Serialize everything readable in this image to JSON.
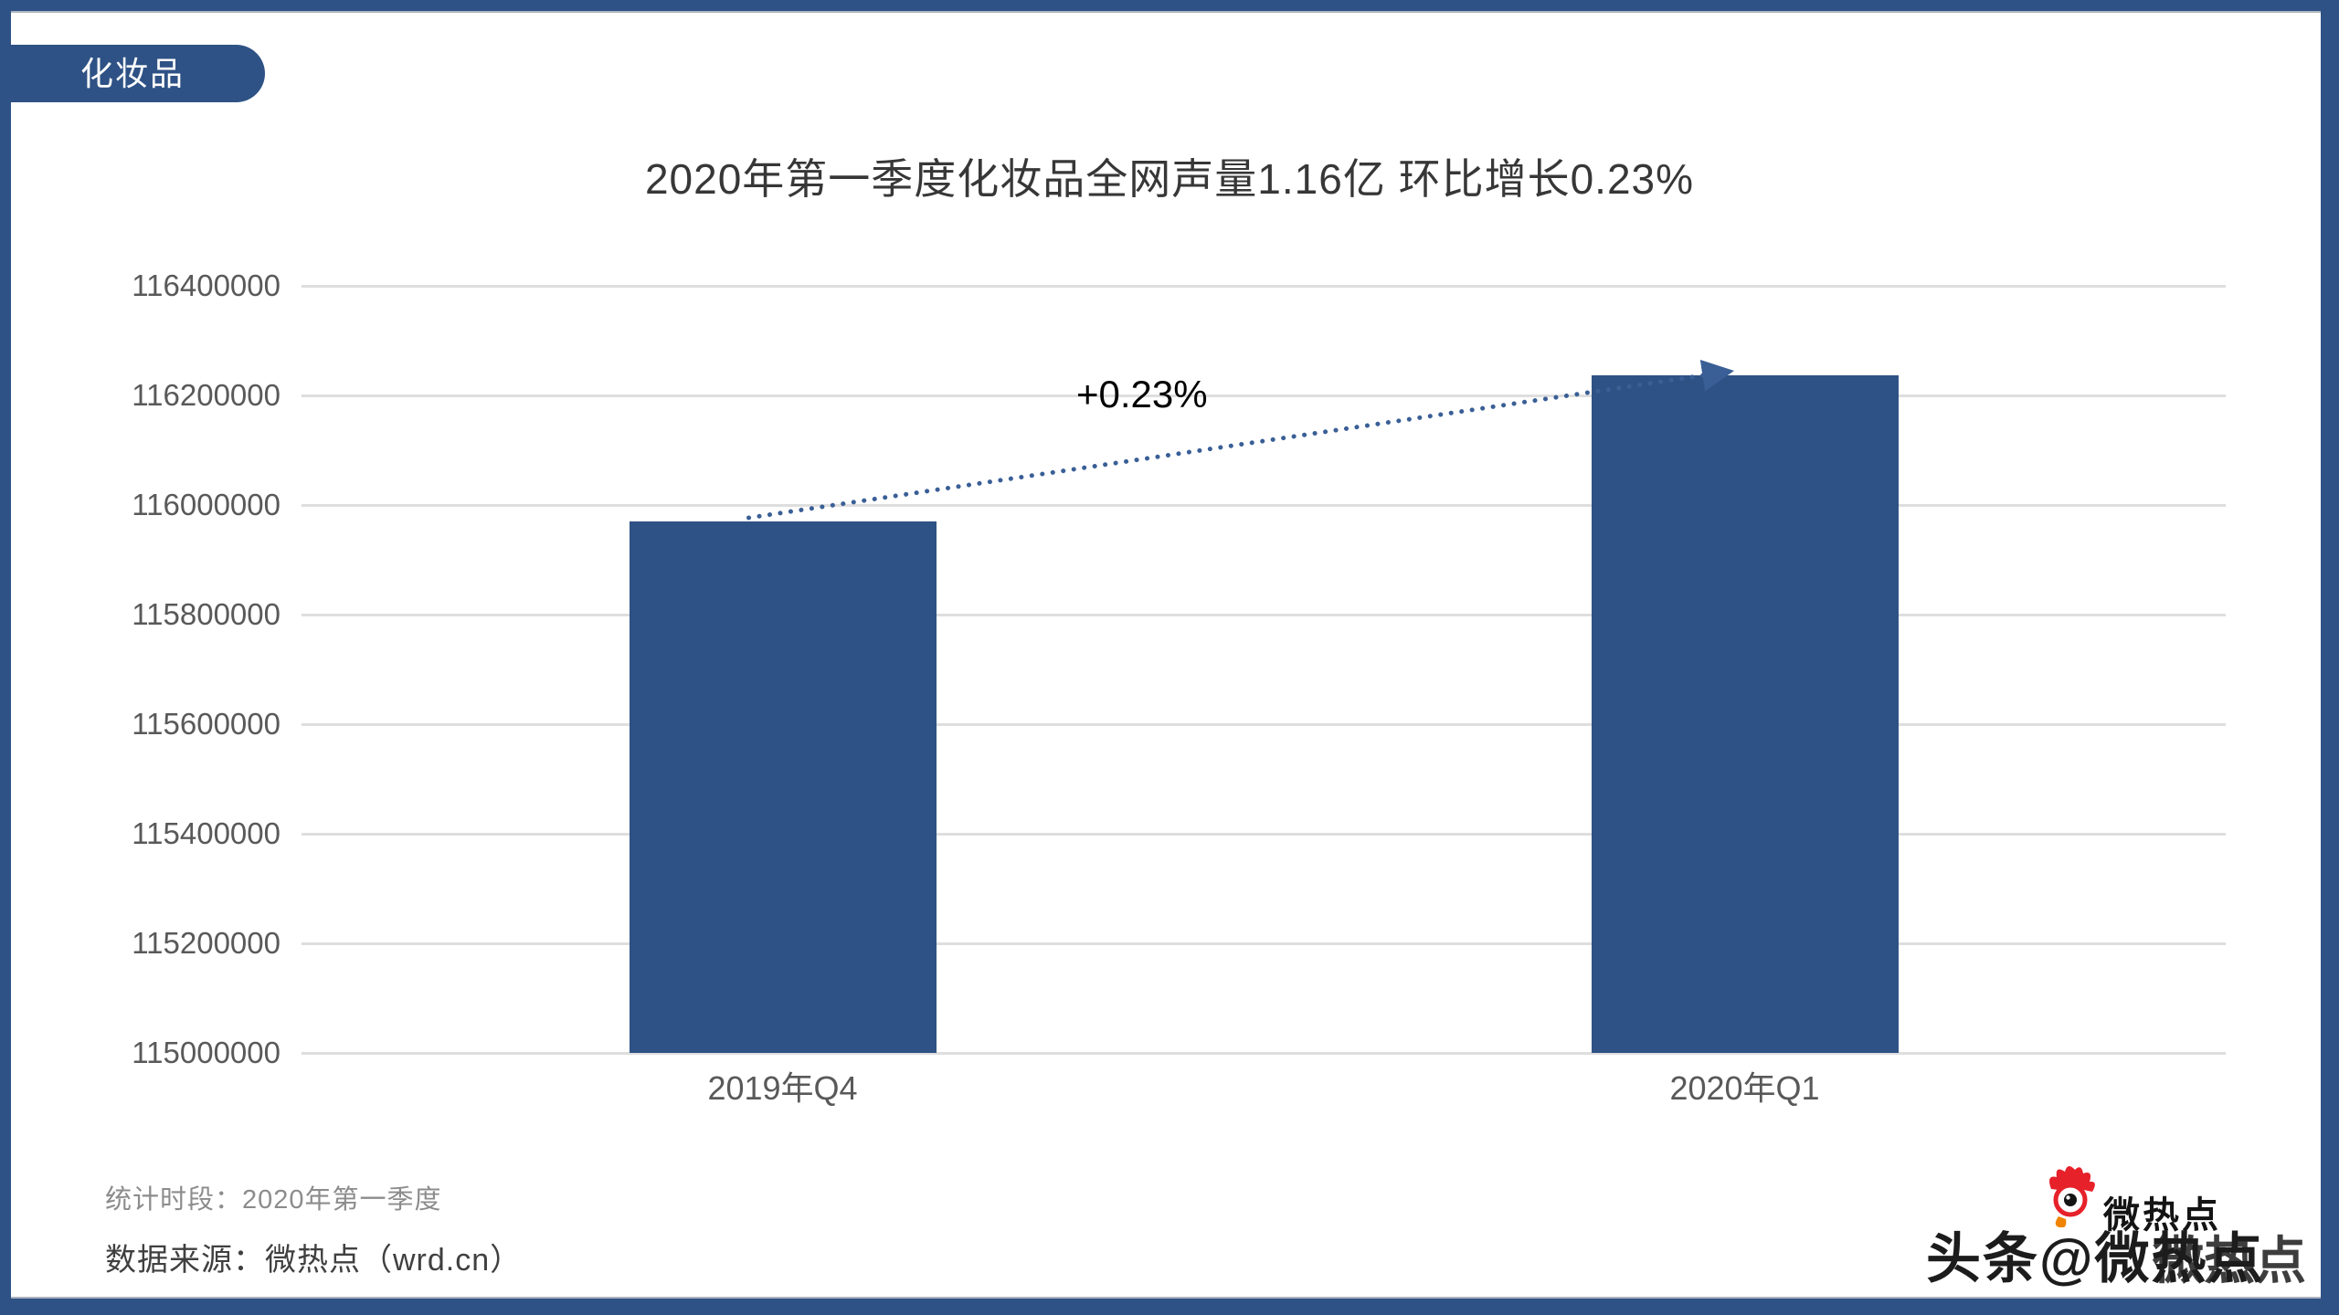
{
  "page": {
    "badge": "化妆品",
    "title": "2020年第一季度化妆品全网声量1.16亿 环比增长0.23%",
    "footer": {
      "period_label": "统计时段：2020年第一季度",
      "source_label": "数据来源：微热点（wrd.cn）"
    },
    "watermark": {
      "logo_text": "微热点",
      "overlay_text": "头条@微热点"
    },
    "colors": {
      "brand_blue": "#2e5285",
      "grid_gray": "#dedede",
      "axis_text_gray": "#595959",
      "title_text": "#373737",
      "annotation_black": "#000000",
      "dotted_line_blue": "#3a5f96",
      "footer_gray": "#8c8c8c",
      "footer_dark": "#404040",
      "logo_red": "#e6212a",
      "logo_drop_orange": "#f08300"
    }
  },
  "chart_data": {
    "type": "bar",
    "title": "2020年第一季度化妆品全网声量1.16亿 环比增长0.23%",
    "categories": [
      "2019年Q4",
      "2020年Q1"
    ],
    "values": [
      115970000,
      116236000
    ],
    "annotation": "+0.23%",
    "ylim": [
      115000000,
      116400000
    ],
    "ytick_step": 200000,
    "yticks": [
      116400000,
      116200000,
      116000000,
      115800000,
      115600000,
      115400000,
      115200000,
      115000000
    ],
    "xlabel": "",
    "ylabel": "",
    "grid": true,
    "legend": false,
    "bar_color": "#2e5285"
  }
}
